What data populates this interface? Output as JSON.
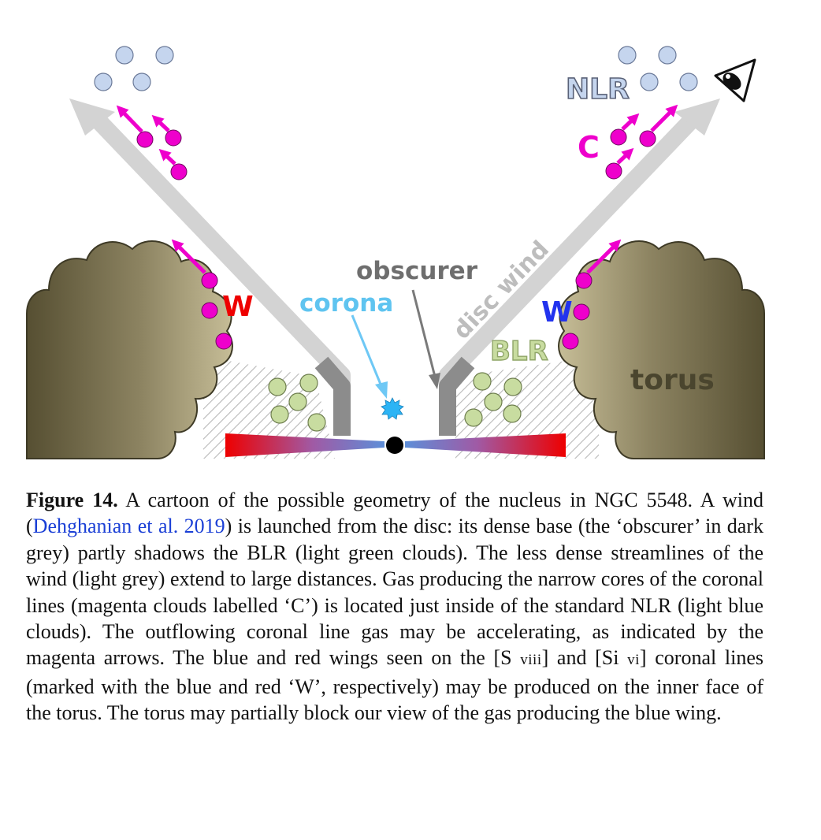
{
  "figure": {
    "labels": {
      "nlr": "NLR",
      "c": "C",
      "disc_wind": "disc wind",
      "obscurer": "obscurer",
      "corona": "corona",
      "w_red": "W",
      "w_blue": "W",
      "blr": "BLR",
      "torus": "torus"
    },
    "colors": {
      "nlr_cloud": "#c5d5ee",
      "nlr_cloud_stroke": "#6b7a99",
      "magenta": "#ee00cc",
      "blr_cloud": "#c8dca0",
      "blr_text": "#aac07a",
      "wind_light": "#d0d0d0",
      "wind_dark": "#8c8c8c",
      "torus": "#a39a78",
      "torus_dark": "#5b5438",
      "corona": "#2cb4f5",
      "red_w": "#ee0000",
      "blue_w": "#2233ee",
      "disc_red": "#ee0000",
      "disc_blue": "#5d8ed8",
      "nlr_text": "#7a8296"
    }
  },
  "caption": {
    "figure_number": "Figure 14.",
    "text_1": " A cartoon of the possible geometry of the nucleus in NGC 5548. A wind (",
    "citation": "Dehghanian et al. 2019",
    "text_2": ") is launched from the disc: its dense base (the ‘obscurer’ in dark grey) partly shadows the BLR (light green clouds). The less dense streamlines of the wind (light grey) extend to large distances. Gas producing the narrow cores of the coronal lines (magenta clouds labelled ‘C’) is located just inside of the standard NLR (light blue clouds). The outflowing coronal line gas may be accelerating, as indicated by the magenta arrows. The blue and red wings seen on the [S ",
    "ion_1": "viii",
    "text_3": "] and [Si ",
    "ion_2": "vi",
    "text_4": "] coronal lines (marked with the blue and red ‘W’, respectively) may be produced on the inner face of the torus. The torus may partially block our view of the gas producing the blue wing."
  }
}
